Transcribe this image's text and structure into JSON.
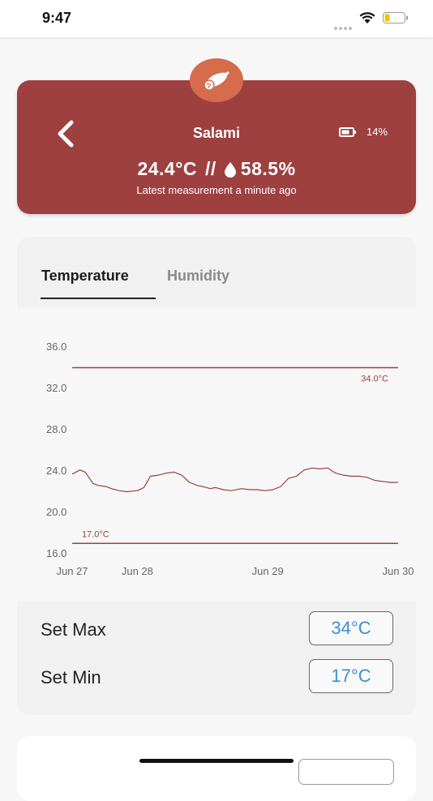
{
  "status_bar": {
    "time": "9:47"
  },
  "header": {
    "title": "Salami",
    "battery": "14%",
    "temperature": "24.4°C",
    "separator": "//",
    "humidity": "58.5%",
    "subtitle": "Latest measurement a minute ago",
    "avatar_icon": "salami-icon",
    "back_icon": "chevron-left-icon"
  },
  "tabs": [
    {
      "label": "Temperature",
      "active": true
    },
    {
      "label": "Humidity",
      "active": false
    }
  ],
  "settings": {
    "max_label": "Set Max",
    "max_value": "34°C",
    "min_label": "Set Min",
    "min_value": "17°C"
  },
  "colors": {
    "brand": "#9e403f",
    "avatar": "#d56c4b",
    "accent_blue": "#3b8fd9"
  },
  "chart_data": {
    "type": "line",
    "x_ticks": [
      "Jun 27",
      "Jun 28",
      "Jun 29",
      "Jun 30"
    ],
    "x_tick_positions": [
      0,
      0.5,
      1.5,
      2.5
    ],
    "y_ticks": [
      "36.0",
      "32.0",
      "28.0",
      "24.0",
      "20.0",
      "16.0"
    ],
    "ylim": [
      16,
      36
    ],
    "xlim": [
      0,
      2.5
    ],
    "thresholds": [
      {
        "value": 34,
        "label": "34.0°C"
      },
      {
        "value": 17,
        "label": "17.0°C"
      }
    ],
    "series": [
      {
        "x": [
          0,
          0.06,
          0.1,
          0.16,
          0.2,
          0.26,
          0.3,
          0.36,
          0.42,
          0.5,
          0.55,
          0.6,
          0.66,
          0.72,
          0.78,
          0.84,
          0.9,
          0.96,
          1.0,
          1.06,
          1.1,
          1.16,
          1.22,
          1.3,
          1.36,
          1.42,
          1.48,
          1.54,
          1.6,
          1.66,
          1.72,
          1.78,
          1.84,
          1.9,
          1.96,
          2.02,
          2.08,
          2.14,
          2.2,
          2.26,
          2.32,
          2.38,
          2.44,
          2.5
        ],
        "y": [
          23.7,
          24.1,
          23.9,
          22.8,
          22.6,
          22.5,
          22.3,
          22.1,
          22.0,
          22.1,
          22.4,
          23.5,
          23.6,
          23.8,
          23.9,
          23.6,
          22.9,
          22.6,
          22.5,
          22.3,
          22.4,
          22.2,
          22.1,
          22.3,
          22.2,
          22.2,
          22.1,
          22.2,
          22.5,
          23.3,
          23.5,
          24.1,
          24.3,
          24.2,
          24.3,
          23.8,
          23.6,
          23.5,
          23.5,
          23.4,
          23.1,
          23.0,
          22.9,
          22.9
        ]
      }
    ]
  }
}
